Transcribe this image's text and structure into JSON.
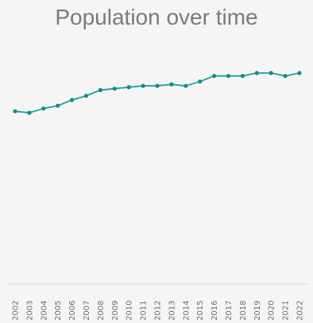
{
  "chart_data": {
    "type": "line",
    "title": "Population over time",
    "x": [
      "2002",
      "2003",
      "2004",
      "2005",
      "2006",
      "2007",
      "2008",
      "2009",
      "2010",
      "2011",
      "2012",
      "2013",
      "2014",
      "2015",
      "2016",
      "2017",
      "2018",
      "2019",
      "2020",
      "2021",
      "2022"
    ],
    "values": [
      130.5,
      129.4,
      132.6,
      134.7,
      139.0,
      142.2,
      146.5,
      147.6,
      148.7,
      149.7,
      149.7,
      150.8,
      149.7,
      153.0,
      157.2,
      157.2,
      157.2,
      159.4,
      159.4,
      157.2,
      159.4
    ],
    "xlabel": "",
    "ylabel": "",
    "grid": false,
    "line_color": "#1a9e9e",
    "marker_color": "#108c8c",
    "axis_color": "#d8d8d8",
    "title_color": "#7a7a7a"
  }
}
